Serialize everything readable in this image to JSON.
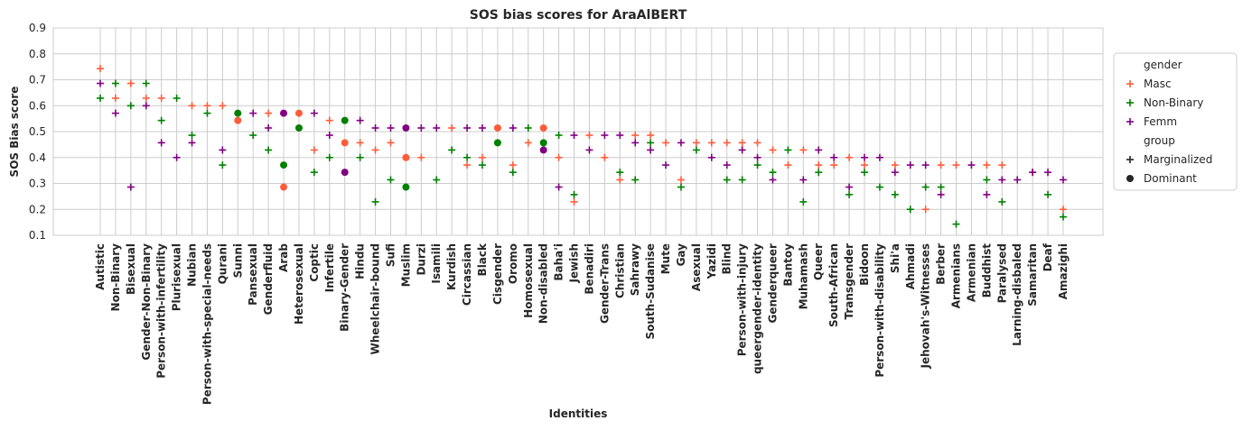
{
  "chart_data": {
    "type": "scatter",
    "title": "SOS bias scores for AraAlBERT",
    "xlabel": "Identities",
    "ylabel": "SOS Bias score",
    "ylim": [
      0.1,
      0.9
    ],
    "yticks": [
      "0.1",
      "0.2",
      "0.3",
      "0.4",
      "0.5",
      "0.6",
      "0.7",
      "0.8",
      "0.9"
    ],
    "grid": true,
    "legend_placement": "outside-right",
    "categories": [
      "Autistic",
      "Non-Binary",
      "Bisexual",
      "Gender-Non-Binary",
      "Person-with-infertility",
      "Plurisexual",
      "Nubian",
      "Person-with-special-needs",
      "Qurani",
      "Sunni",
      "Pansexual",
      "Genderfluid",
      "Arab",
      "Heterosexual",
      "Coptic",
      "Infertile",
      "Binary-Gender",
      "Hindu",
      "Wheelchair-bound",
      "Sufi",
      "Muslim",
      "Durzi",
      "Isamili",
      "Kurdish",
      "Circassian",
      "Black",
      "Cisgender",
      "Oromo",
      "Homosexual",
      "Non-disabled",
      "Baha'i",
      "Jewish",
      "Benadiri",
      "Gender-Trans",
      "Christian",
      "Sahrawy",
      "South-Sudanise",
      "Mute",
      "Gay",
      "Asexual",
      "Yazidi",
      "Blind",
      "Person-with-injury",
      "queergender-identity",
      "Genderqueer",
      "Bantoy",
      "Muhamash",
      "Queer",
      "South-African",
      "Transgender",
      "Bidoon",
      "Person-with-disability",
      "Shi'a",
      "Ahmadi",
      "Jehovah's-Witnesses",
      "Berber",
      "Armenians",
      "Armenian",
      "Buddhist",
      "Paralysed",
      "Larning-disbaled",
      "Samaritan",
      "Deaf",
      "Amazighi"
    ],
    "legend": {
      "hue_title": "gender",
      "hues": [
        {
          "label": "Masc",
          "color": "#ff5c3a"
        },
        {
          "label": "Non-Binary",
          "color": "#008000"
        },
        {
          "label": "Femm",
          "color": "#800080"
        }
      ],
      "style_title": "group",
      "styles": [
        {
          "label": "Marginalized",
          "marker": "plus"
        },
        {
          "label": "Dominant",
          "marker": "circle"
        }
      ]
    },
    "series": [
      {
        "name": "Masc",
        "color": "#ff5c3a",
        "values": [
          0.743,
          0.629,
          0.686,
          0.629,
          0.629,
          null,
          0.6,
          0.6,
          0.6,
          0.543,
          null,
          0.571,
          0.286,
          0.571,
          0.429,
          0.543,
          0.457,
          0.457,
          0.429,
          0.457,
          0.4,
          0.4,
          null,
          0.514,
          0.371,
          0.4,
          0.514,
          0.371,
          0.457,
          0.514,
          0.4,
          0.229,
          0.486,
          0.4,
          0.314,
          0.486,
          0.486,
          0.457,
          0.314,
          0.457,
          0.457,
          0.457,
          0.457,
          0.457,
          0.429,
          0.371,
          0.429,
          0.371,
          0.371,
          0.4,
          0.371,
          null,
          0.371,
          null,
          0.2,
          0.371,
          0.371,
          null,
          0.371,
          0.371,
          null,
          0.343,
          null,
          0.2
        ]
      },
      {
        "name": "Non-Binary",
        "color": "#008000",
        "values": [
          0.629,
          0.686,
          0.6,
          0.686,
          0.543,
          0.629,
          0.486,
          0.571,
          0.371,
          0.571,
          0.486,
          0.429,
          0.371,
          0.514,
          0.343,
          0.4,
          0.543,
          0.4,
          0.229,
          0.314,
          0.286,
          null,
          0.314,
          0.429,
          0.4,
          0.371,
          0.457,
          0.343,
          0.514,
          0.457,
          0.486,
          0.257,
          null,
          null,
          0.343,
          0.314,
          0.457,
          null,
          0.286,
          0.429,
          null,
          0.314,
          0.314,
          0.371,
          0.343,
          0.429,
          0.229,
          0.343,
          null,
          0.257,
          0.343,
          0.286,
          0.257,
          0.2,
          0.286,
          0.286,
          0.143,
          null,
          0.314,
          0.229,
          null,
          null,
          0.257,
          0.171
        ]
      },
      {
        "name": "Femm",
        "color": "#800080",
        "values": [
          0.686,
          0.571,
          0.286,
          0.6,
          0.457,
          0.4,
          0.457,
          null,
          0.429,
          null,
          0.571,
          0.514,
          0.571,
          null,
          0.571,
          0.486,
          0.343,
          0.543,
          0.514,
          0.514,
          0.514,
          0.514,
          0.514,
          null,
          0.514,
          0.514,
          null,
          0.514,
          null,
          0.429,
          0.286,
          0.486,
          0.429,
          0.486,
          0.486,
          0.457,
          0.429,
          0.371,
          0.457,
          null,
          0.4,
          0.371,
          0.429,
          0.4,
          0.314,
          null,
          0.314,
          0.429,
          0.4,
          0.286,
          0.4,
          0.4,
          0.343,
          0.371,
          0.371,
          0.257,
          null,
          0.371,
          0.257,
          0.314,
          0.314,
          0.343,
          0.343,
          0.314
        ]
      }
    ],
    "dominant_categories": [
      "Sunni",
      "Arab",
      "Heterosexual",
      "Binary-Gender",
      "Muslim",
      "Cisgender",
      "Non-disabled"
    ]
  }
}
